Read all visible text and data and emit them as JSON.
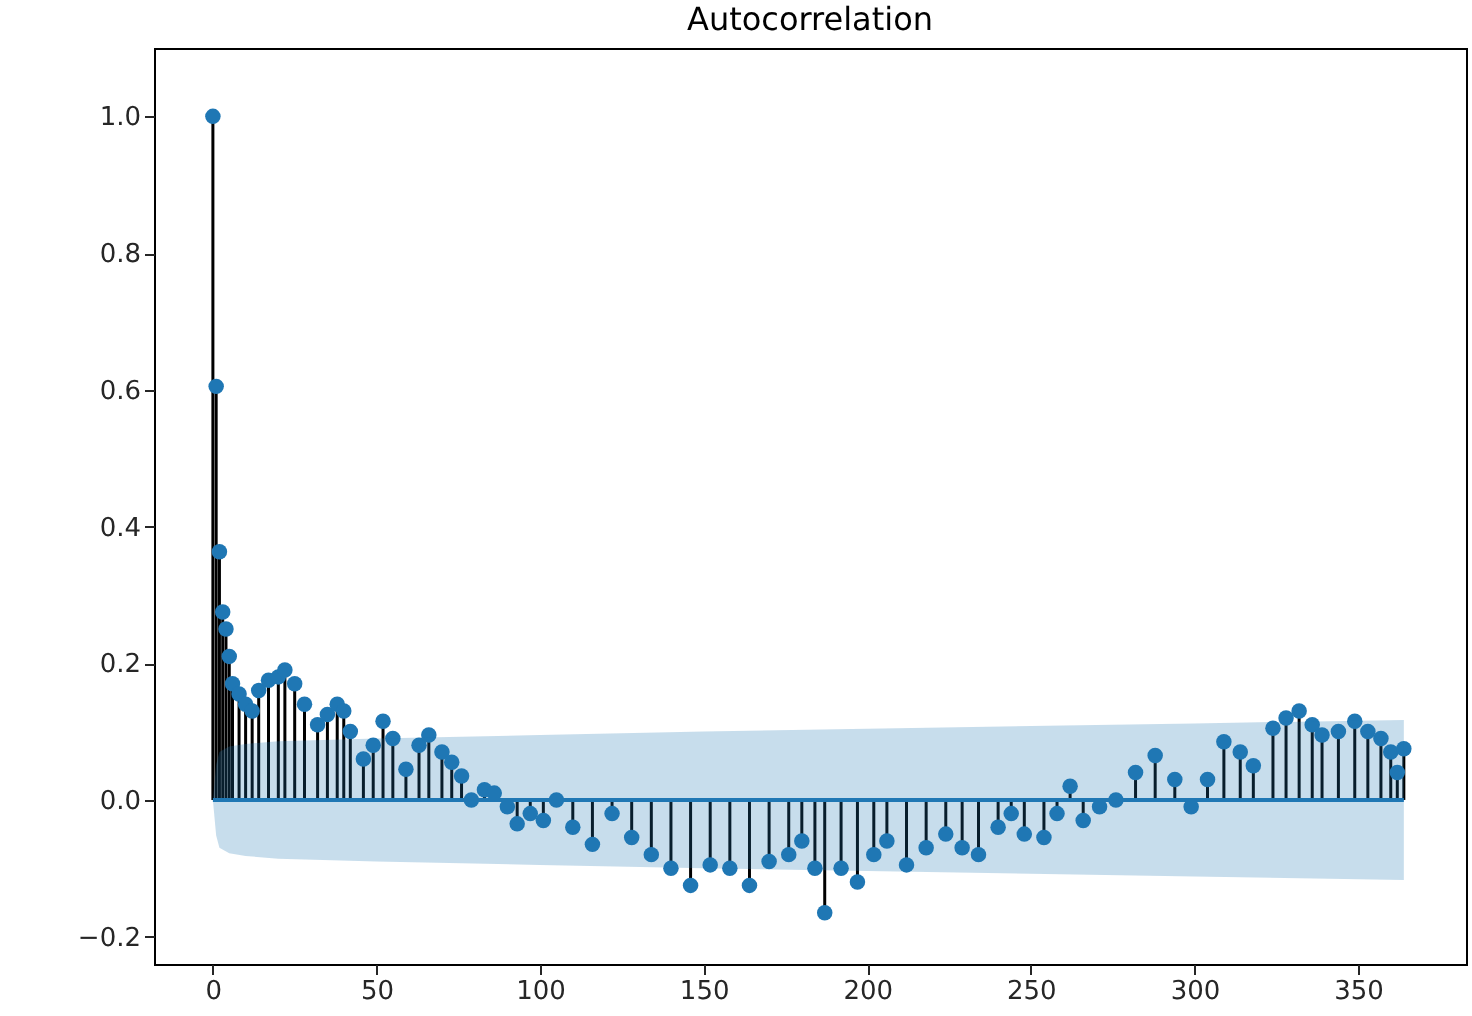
{
  "chart_data": {
    "type": "lollipop",
    "title": "Autocorrelation",
    "xlim": [
      -18,
      383
    ],
    "ylim": [
      -0.24,
      1.1
    ],
    "xticks": [
      0,
      50,
      100,
      150,
      200,
      250,
      300,
      350
    ],
    "yticks": [
      {
        "value": -0.2,
        "label": "−0.2"
      },
      {
        "value": 0,
        "label": "0.0"
      },
      {
        "value": 0.2,
        "label": "0.2"
      },
      {
        "value": 0.4,
        "label": "0.4"
      },
      {
        "value": 0.6,
        "label": "0.6"
      },
      {
        "value": 0.8,
        "label": "0.8"
      },
      {
        "value": 1,
        "label": "1.0"
      }
    ],
    "marker": "circle",
    "series": [
      {
        "color": "#1f77b4",
        "x": [
          0,
          1,
          2,
          3,
          4,
          5,
          6,
          8,
          10,
          12,
          14,
          17,
          20,
          22,
          25,
          28,
          32,
          35,
          38,
          40,
          42,
          46,
          49,
          52,
          55,
          59,
          63,
          66,
          70,
          73,
          76,
          79,
          83,
          86,
          90,
          93,
          97,
          101,
          105,
          110,
          116,
          122,
          128,
          134,
          140,
          146,
          152,
          158,
          164,
          170,
          176,
          180,
          184,
          187,
          192,
          197,
          202,
          206,
          212,
          218,
          224,
          229,
          234,
          240,
          244,
          248,
          254,
          258,
          262,
          266,
          271,
          276,
          282,
          288,
          294,
          299,
          304,
          309,
          314,
          318,
          324,
          328,
          332,
          336,
          339,
          344,
          349,
          353,
          357,
          360,
          362,
          364
        ],
        "values": [
          1.0,
          0.605,
          0.363,
          0.275,
          0.25,
          0.21,
          0.17,
          0.155,
          0.14,
          0.13,
          0.16,
          0.175,
          0.18,
          0.19,
          0.17,
          0.14,
          0.11,
          0.125,
          0.14,
          0.13,
          0.1,
          0.06,
          0.08,
          0.115,
          0.09,
          0.045,
          0.08,
          0.095,
          0.07,
          0.055,
          0.035,
          0.0,
          0.015,
          0.01,
          -0.01,
          -0.035,
          -0.02,
          -0.03,
          0.0,
          -0.04,
          -0.065,
          -0.02,
          -0.055,
          -0.08,
          -0.1,
          -0.125,
          -0.095,
          -0.1,
          -0.125,
          -0.09,
          -0.08,
          -0.06,
          -0.1,
          -0.165,
          -0.1,
          -0.12,
          -0.08,
          -0.06,
          -0.095,
          -0.07,
          -0.05,
          -0.07,
          -0.08,
          -0.04,
          -0.02,
          -0.05,
          -0.055,
          -0.02,
          0.02,
          -0.03,
          -0.01,
          0.0,
          0.04,
          0.065,
          0.03,
          -0.01,
          0.03,
          0.085,
          0.07,
          0.05,
          0.105,
          0.12,
          0.13,
          0.11,
          0.095,
          0.1,
          0.115,
          0.1,
          0.09,
          0.07,
          0.04,
          0.075
        ]
      },
      {
        "type": "line",
        "marker": "none",
        "color": "#1f77b4",
        "x": [
          0,
          1,
          2,
          5,
          10,
          20,
          50,
          100,
          150,
          200,
          250,
          300,
          364
        ],
        "values": [
          0,
          0,
          0,
          0,
          0,
          0,
          0,
          0,
          0,
          0,
          0,
          0,
          0
        ],
        "lower": [
          0,
          -0.052,
          -0.07,
          -0.078,
          -0.082,
          -0.086,
          -0.09,
          -0.095,
          -0.1,
          -0.104,
          -0.108,
          -0.112,
          -0.117
        ],
        "upper": [
          0,
          0.052,
          0.07,
          0.078,
          0.082,
          0.086,
          0.09,
          0.095,
          0.1,
          0.104,
          0.108,
          0.112,
          0.117
        ]
      }
    ]
  }
}
